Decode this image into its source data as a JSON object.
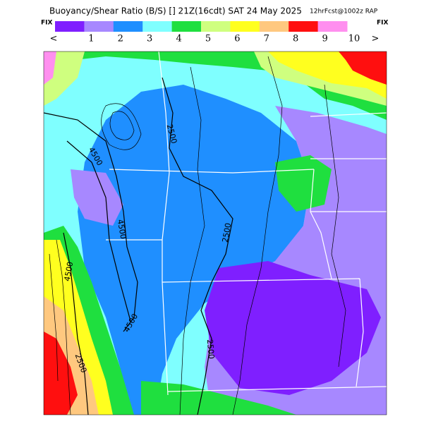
{
  "header": {
    "title": "Buoyancy/Shear Ratio (B/S) [] 21Z(16cdt) SAT 24 May 2025",
    "subtitle": "12hrFcst@1002z RAP"
  },
  "legend": {
    "left": "FIX",
    "right": "FIX",
    "colors": [
      "#7f1fff",
      "#a788ff",
      "#1f8fff",
      "#7fffff",
      "#1fdf3f",
      "#cfff7f",
      "#ffff1f",
      "#ffc87f",
      "#ff0f0f",
      "#ff8fef"
    ],
    "labels": [
      "<",
      "1",
      "2",
      "3",
      "4",
      "5",
      "6",
      "7",
      "8",
      "9",
      "10",
      ">"
    ]
  },
  "contour_labels": [
    "2500",
    "4500",
    "4500",
    "2500",
    "4500",
    "4500",
    "2500",
    "2500"
  ]
}
